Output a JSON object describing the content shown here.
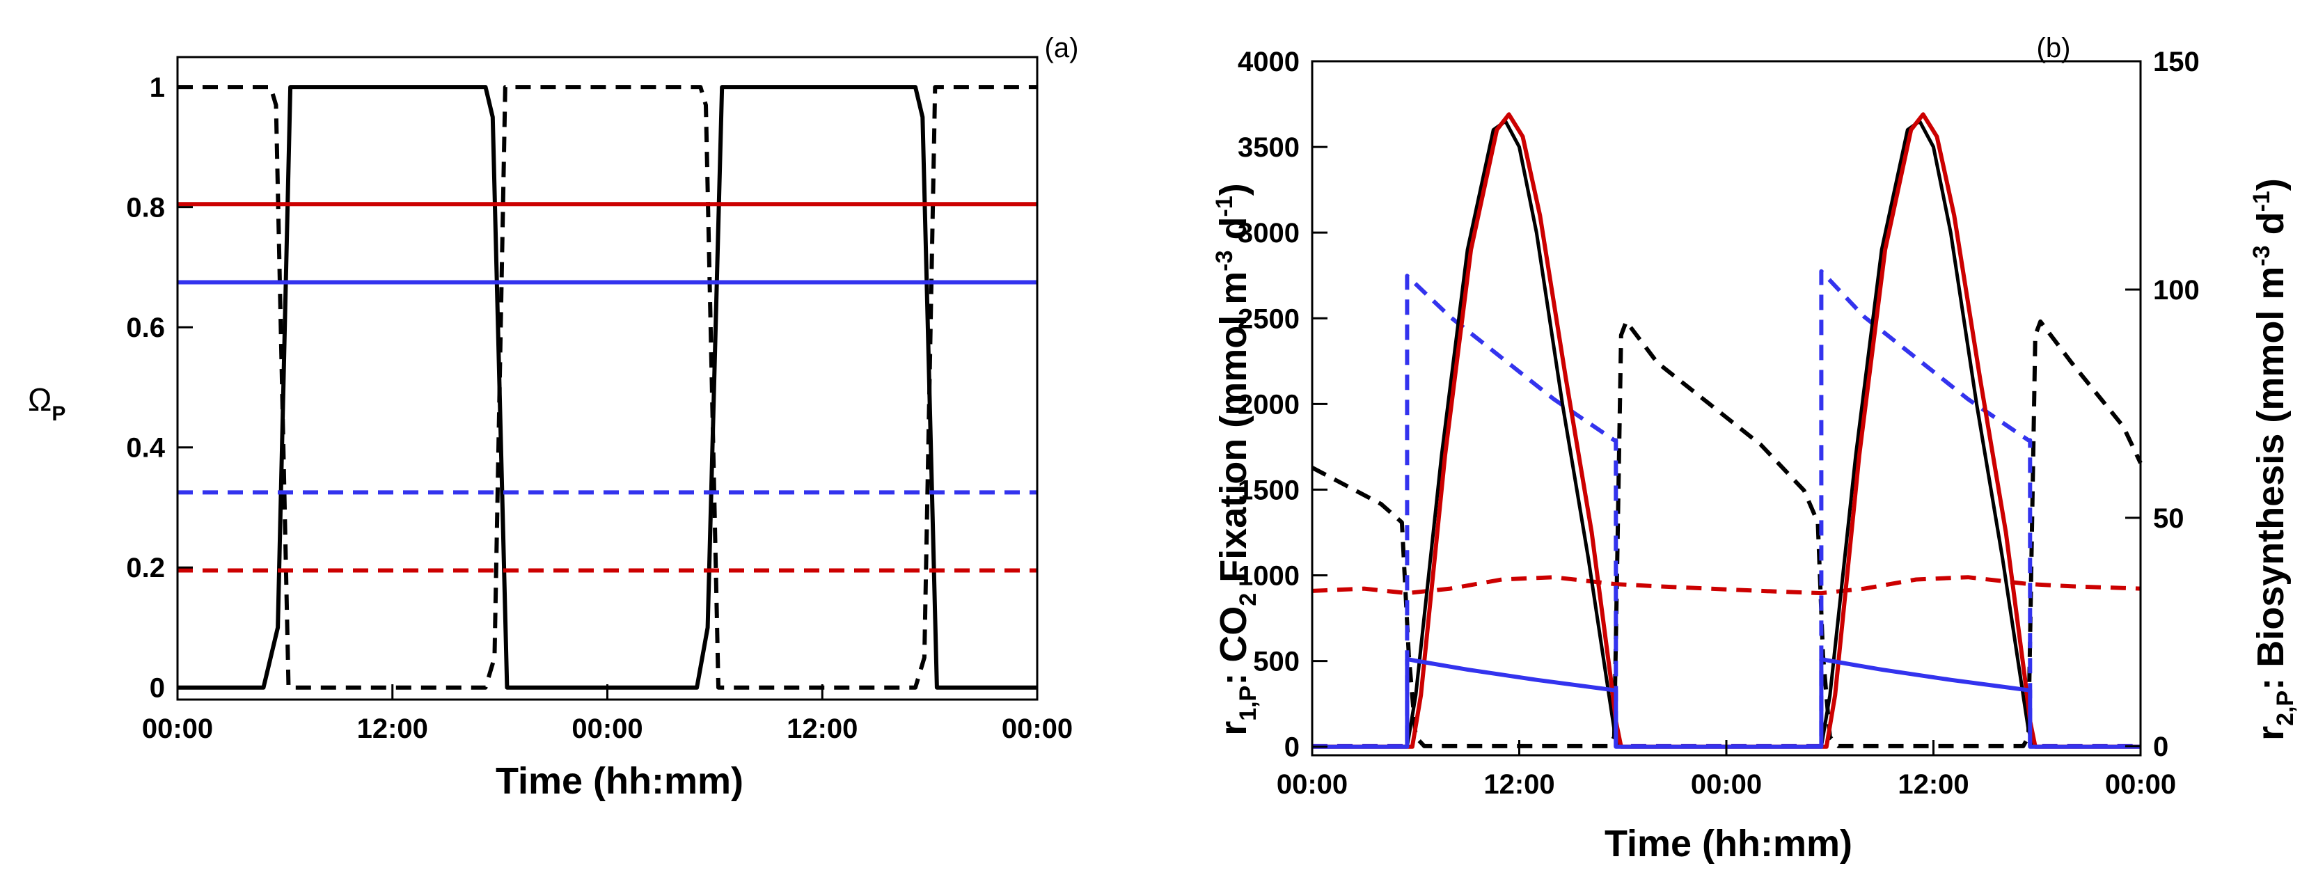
{
  "chart_data": [
    {
      "panel": "(a)",
      "type": "line",
      "xlabel": "Time (hh:mm)",
      "ylabel_main": "Ω",
      "ylabel_sub": "P",
      "xlim": [
        0,
        48
      ],
      "ylim": [
        -0.02,
        1.05
      ],
      "x_ticks": [
        0,
        12,
        24,
        36,
        48
      ],
      "x_tick_labels": [
        "00:00",
        "12:00",
        "00:00",
        "12:00",
        "00:00"
      ],
      "y_ticks": [
        0,
        0.2,
        0.4,
        0.6,
        0.8,
        1
      ],
      "y_tick_labels": [
        "0",
        "0.2",
        "0.4",
        "0.6",
        "0.8",
        "1"
      ],
      "series": [
        {
          "name": "black-solid",
          "color": "#000000",
          "dash": false,
          "x": [
            0,
            4.8,
            5.6,
            6.3,
            17.2,
            17.6,
            18.4,
            29,
            29.6,
            30.4,
            41.2,
            41.6,
            42.4,
            48
          ],
          "y": [
            0,
            0,
            0.1,
            1,
            1,
            0.95,
            0,
            0,
            0.1,
            1,
            1,
            0.95,
            0,
            0
          ]
        },
        {
          "name": "black-dashed",
          "color": "#000000",
          "dash": true,
          "x": [
            0,
            5.2,
            5.5,
            6.2,
            17.2,
            17.7,
            18.3,
            29.2,
            29.5,
            30.2,
            41.2,
            41.7,
            42.3,
            48
          ],
          "y": [
            1,
            1,
            0.97,
            0,
            0,
            0.05,
            1,
            1,
            0.97,
            0,
            0,
            0.05,
            1,
            1
          ]
        },
        {
          "name": "red-solid",
          "color": "#cc0000",
          "dash": false,
          "x": [
            0,
            48
          ],
          "y": [
            0.805,
            0.805
          ]
        },
        {
          "name": "blue-solid",
          "color": "#3333ee",
          "dash": false,
          "x": [
            0,
            48
          ],
          "y": [
            0.675,
            0.675
          ]
        },
        {
          "name": "blue-dashed",
          "color": "#3333ee",
          "dash": true,
          "x": [
            0,
            48
          ],
          "y": [
            0.325,
            0.325
          ]
        },
        {
          "name": "red-dashed",
          "color": "#cc0000",
          "dash": true,
          "x": [
            0,
            48
          ],
          "y": [
            0.195,
            0.195
          ]
        }
      ]
    },
    {
      "panel": "(b)",
      "type": "line",
      "xlabel": "Time (hh:mm)",
      "ylabel_left": {
        "pre": "r",
        "sub": "1,P",
        "mid": ": CO",
        "sub2": "2",
        "post": " Fixation (mmol m",
        "sup": "-3",
        "post2": " d",
        "sup2": "-1",
        "end": ")"
      },
      "ylabel_right": {
        "pre": "r",
        "sub": "2,P",
        "post": ": Biosynthesis (mmol m",
        "sup": "-3",
        "post2": " d",
        "sup2": "-1",
        "end": ")"
      },
      "xlim": [
        0,
        48
      ],
      "ylim_left": [
        -50,
        4000
      ],
      "ylim_right": [
        -2,
        150
      ],
      "x_ticks": [
        0,
        12,
        24,
        36,
        48
      ],
      "x_tick_labels": [
        "00:00",
        "12:00",
        "00:00",
        "12:00",
        "00:00"
      ],
      "y_ticks_left": [
        0,
        500,
        1000,
        1500,
        2000,
        2500,
        3000,
        3500,
        4000
      ],
      "y_tick_labels_left": [
        "0",
        "500",
        "1000",
        "1500",
        "2000",
        "2500",
        "3000",
        "3500",
        "4000"
      ],
      "y_ticks_right": [
        0,
        50,
        100,
        150
      ],
      "y_tick_labels_right": [
        "0",
        "50",
        "100",
        "150"
      ],
      "series": [
        {
          "name": "r1-black-solid",
          "axis": "left",
          "color": "#000000",
          "dash": false,
          "width": 5,
          "x": [
            0,
            5.5,
            6.0,
            7.5,
            9.0,
            10.5,
            11.2,
            12.0,
            13.0,
            14.5,
            16.0,
            17.2,
            17.5,
            17.8,
            29.5,
            30.0,
            31.5,
            33.0,
            34.5,
            35.2,
            36.0,
            37.0,
            38.5,
            40.0,
            41.2,
            41.5,
            41.8,
            48
          ],
          "y": [
            0,
            0,
            300,
            1700,
            2900,
            3600,
            3650,
            3500,
            3000,
            2000,
            1100,
            300,
            100,
            0,
            0,
            300,
            1700,
            2900,
            3600,
            3650,
            3500,
            3000,
            2000,
            1100,
            300,
            100,
            0,
            0
          ]
        },
        {
          "name": "r1-red-solid",
          "axis": "left",
          "color": "#cc0000",
          "dash": false,
          "width": 6,
          "x": [
            0,
            5.8,
            6.3,
            7.7,
            9.2,
            10.7,
            11.4,
            12.2,
            13.2,
            14.7,
            16.2,
            17.3,
            17.6,
            17.9,
            29.8,
            30.3,
            31.7,
            33.2,
            34.7,
            35.4,
            36.2,
            37.2,
            38.7,
            40.2,
            41.3,
            41.6,
            41.9,
            48
          ],
          "y": [
            0,
            0,
            300,
            1700,
            2900,
            3600,
            3690,
            3560,
            3100,
            2150,
            1250,
            400,
            150,
            0,
            0,
            300,
            1700,
            2900,
            3600,
            3690,
            3560,
            3100,
            2150,
            1250,
            400,
            150,
            0,
            0
          ]
        },
        {
          "name": "r1-blue-solid",
          "axis": "left",
          "color": "#3333ee",
          "dash": false,
          "width": 6,
          "x": [
            0,
            5.5,
            5.5,
            9,
            13,
            17.5,
            17.6,
            17.6,
            29.5,
            29.5,
            33,
            37,
            41.5,
            41.6,
            41.6,
            48
          ],
          "y": [
            0,
            0,
            510,
            450,
            390,
            330,
            330,
            0,
            0,
            510,
            450,
            390,
            330,
            330,
            0,
            0
          ]
        },
        {
          "name": "r2-black-dashed",
          "axis": "right",
          "color": "#000000",
          "dash": true,
          "width": 6,
          "x": [
            0,
            2,
            4,
            5.2,
            5.6,
            6.0,
            6.5,
            17.2,
            17.5,
            17.9,
            18.2,
            20,
            23,
            26,
            28.5,
            29.3,
            29.6,
            30.0,
            30.5,
            41.2,
            41.5,
            41.9,
            42.2,
            44,
            47,
            48
          ],
          "y": [
            61,
            57,
            53,
            49,
            20,
            2,
            0,
            0,
            2,
            90,
            93,
            84,
            75,
            66,
            56,
            49,
            20,
            2,
            0,
            0,
            2,
            90,
            93,
            84,
            70,
            62
          ]
        },
        {
          "name": "r2-red-dashed",
          "axis": "right",
          "color": "#cc0000",
          "dash": true,
          "width": 6,
          "x": [
            0,
            3,
            5.5,
            8,
            11,
            14,
            17.5,
            20,
            23,
            26,
            29.5,
            32,
            35,
            38,
            41.5,
            44,
            48
          ],
          "y": [
            34,
            34.5,
            33.5,
            34.5,
            36.5,
            37,
            35.5,
            35,
            34.5,
            34,
            33.5,
            34.5,
            36.5,
            37,
            35.5,
            35,
            34.5
          ]
        },
        {
          "name": "r2-blue-dashed",
          "axis": "right",
          "color": "#3333ee",
          "dash": true,
          "width": 6,
          "x": [
            0,
            5.5,
            5.5,
            8,
            11,
            14,
            17.5,
            17.6,
            17.6,
            29.5,
            29.5,
            32,
            35,
            38,
            41.5,
            41.6,
            41.6,
            48
          ],
          "y": [
            0,
            0,
            103,
            94,
            85,
            76,
            67,
            67,
            0,
            0,
            104,
            94,
            85,
            76,
            67,
            67,
            0,
            0
          ]
        }
      ]
    }
  ]
}
